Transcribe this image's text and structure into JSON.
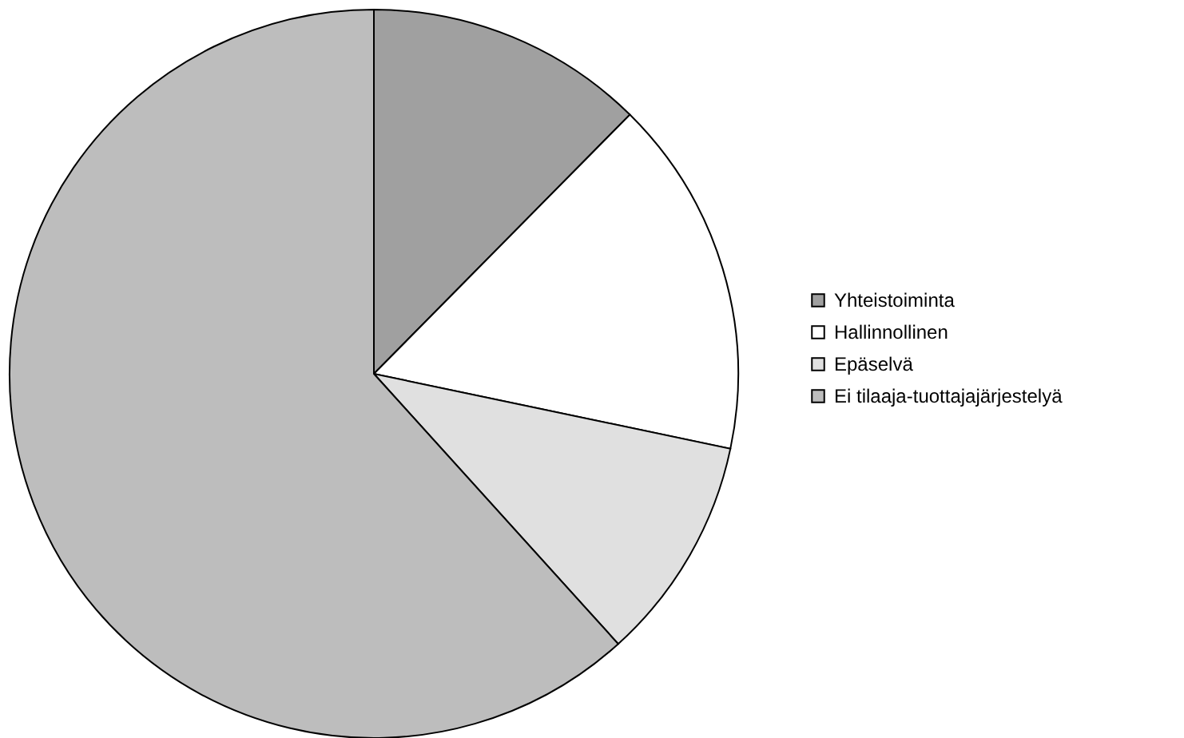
{
  "chart_data": {
    "type": "pie",
    "categories": [
      "Yhteistoiminta",
      "Hallinnollinen",
      "Epäselvä",
      "Ei tilaaja-tuottajajärjestelyä"
    ],
    "values": [
      12.4,
      15.9,
      10.0,
      61.7
    ],
    "colors": [
      "#a0a0a0",
      "#ffffff",
      "#e0e0e0",
      "#bdbdbd"
    ],
    "legend": "right"
  }
}
